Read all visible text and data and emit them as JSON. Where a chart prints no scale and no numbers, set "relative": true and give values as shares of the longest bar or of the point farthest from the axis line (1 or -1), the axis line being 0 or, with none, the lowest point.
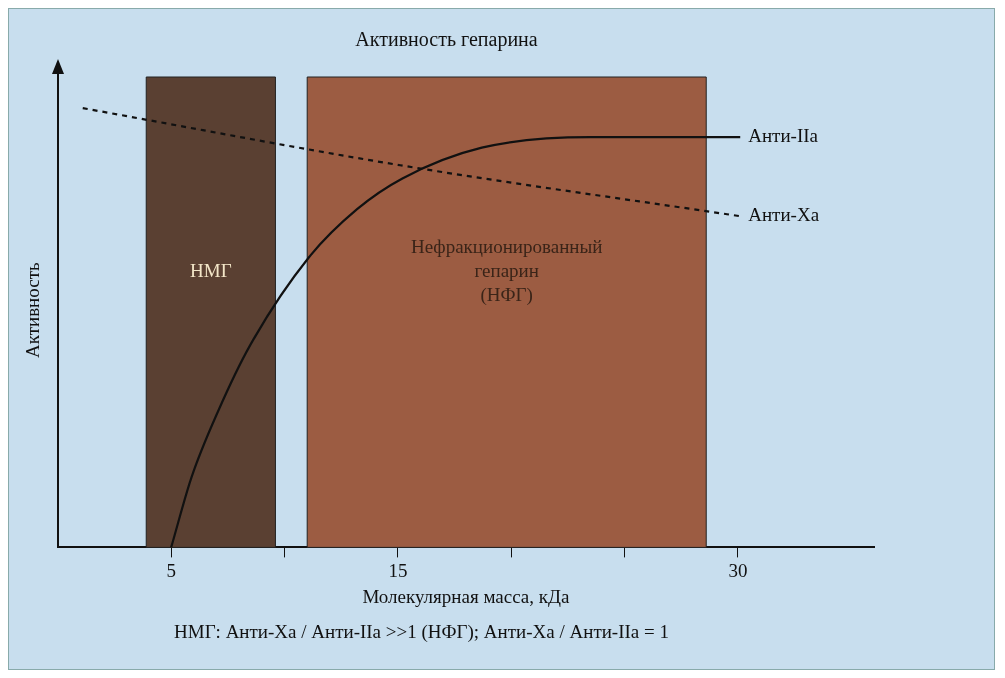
{
  "chart_data": {
    "type": "line",
    "title": "Активность гепарина",
    "xlabel": "Молекулярная масса, кДа",
    "ylabel": "Активность",
    "relative": true,
    "xlim": [
      0,
      36
    ],
    "xticks": [
      5,
      {
        "value": 10,
        "label": null
      },
      15,
      {
        "value": 20,
        "label": null
      },
      {
        "value": 25,
        "label": null
      },
      30
    ],
    "series": [
      {
        "name": "Анти-IIa",
        "color": "#111111",
        "line_style": "solid",
        "x": [
          5,
          5.9,
          7.07,
          8.48,
          11.07,
          13.2,
          15.2,
          18.7,
          23.5,
          30.1
        ],
        "values": [
          0,
          0.16,
          0.31,
          0.46,
          0.66,
          0.77,
          0.84,
          0.91,
          0.934,
          0.934
        ]
      },
      {
        "name": "Анти-Xa",
        "color": "#111111",
        "line_style": "dashed",
        "x": [
          1.1,
          15.1,
          30.1
        ],
        "values": [
          1,
          0.87,
          0.754
        ]
      }
    ],
    "bands": [
      {
        "axis": "x",
        "from": 3.9,
        "to": 9.6,
        "label": "НМГ",
        "color": "#5a4032"
      },
      {
        "axis": "x",
        "from": 11,
        "to": 28.6,
        "label": "Нефракционированный\nгепарин\n(НФГ)",
        "color": "#9c5c42"
      }
    ],
    "marker": "none",
    "grid": false,
    "legend": false,
    "annotations": [
      "НМГ: Анти-Xa / Анти-IIa >>1 (НФГ); Анти-Xa / Анти-IIa = 1"
    ]
  }
}
